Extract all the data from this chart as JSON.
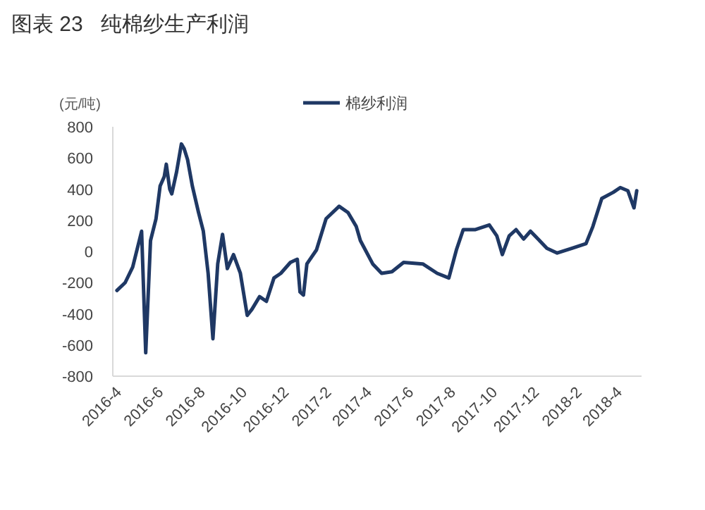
{
  "chart_data": {
    "type": "line",
    "title": "图表 23   纯棉纱生产利润",
    "ylabel": "(元/吨)",
    "legend": "top",
    "grid": false,
    "x": [
      "2016-03-24",
      "2016-04-05",
      "2016-04-16",
      "2016-04-29",
      "2016-05-05",
      "2016-05-12",
      "2016-05-20",
      "2016-05-26",
      "2016-06-01",
      "2016-06-04",
      "2016-06-09",
      "2016-06-12",
      "2016-06-19",
      "2016-06-26",
      "2016-06-30",
      "2016-07-05",
      "2016-07-12",
      "2016-07-21",
      "2016-07-28",
      "2016-08-04",
      "2016-08-11",
      "2016-08-18",
      "2016-08-25",
      "2016-09-01",
      "2016-09-10",
      "2016-09-20",
      "2016-09-30",
      "2016-10-07",
      "2016-10-18",
      "2016-10-28",
      "2016-11-08",
      "2016-11-18",
      "2016-12-02",
      "2016-12-12",
      "2016-12-16",
      "2016-12-21",
      "2016-12-26",
      "2017-01-09",
      "2017-01-23",
      "2017-02-11",
      "2017-02-24",
      "2017-03-08",
      "2017-03-14",
      "2017-04-01",
      "2017-04-14",
      "2017-04-29",
      "2017-05-16",
      "2017-06-13",
      "2017-07-04",
      "2017-07-21",
      "2017-08-01",
      "2017-08-11",
      "2017-08-28",
      "2017-09-18",
      "2017-09-29",
      "2017-10-07",
      "2017-10-17",
      "2017-10-27",
      "2017-11-07",
      "2017-11-17",
      "2017-11-28",
      "2017-12-11",
      "2017-12-26",
      "2018-01-16",
      "2018-02-06",
      "2018-02-16",
      "2018-03-01",
      "2018-03-18",
      "2018-03-28",
      "2018-04-08",
      "2018-04-17",
      "2018-04-21"
    ],
    "series": [
      {
        "name": "棉纱利润",
        "color": "#1f3864",
        "values": [
          -250,
          -200,
          -100,
          130,
          -650,
          70,
          210,
          420,
          480,
          560,
          400,
          370,
          510,
          690,
          660,
          590,
          420,
          250,
          130,
          -140,
          -560,
          -80,
          110,
          -110,
          -20,
          -140,
          -410,
          -370,
          -290,
          -320,
          -170,
          -140,
          -70,
          -50,
          -260,
          -280,
          -80,
          10,
          210,
          290,
          250,
          160,
          70,
          -80,
          -140,
          -130,
          -70,
          -80,
          -140,
          -170,
          10,
          140,
          140,
          170,
          100,
          -20,
          100,
          140,
          80,
          130,
          80,
          20,
          -10,
          20,
          50,
          160,
          340,
          380,
          410,
          390,
          280,
          390
        ]
      }
    ],
    "xlim": [
      "2016-03-18",
      "2018-04-28"
    ],
    "xticks": [
      {
        "value": "2016-04",
        "label": "2016-4"
      },
      {
        "value": "2016-06",
        "label": "2016-6"
      },
      {
        "value": "2016-08",
        "label": "2016-8"
      },
      {
        "value": "2016-10",
        "label": "2016-10"
      },
      {
        "value": "2016-12",
        "label": "2016-12"
      },
      {
        "value": "2017-02",
        "label": "2017-2"
      },
      {
        "value": "2017-04",
        "label": "2017-4"
      },
      {
        "value": "2017-06",
        "label": "2017-6"
      },
      {
        "value": "2017-08",
        "label": "2017-8"
      },
      {
        "value": "2017-10",
        "label": "2017-10"
      },
      {
        "value": "2017-12",
        "label": "2017-12"
      },
      {
        "value": "2018-02",
        "label": "2018-2"
      },
      {
        "value": "2018-04",
        "label": "2018-4"
      }
    ],
    "ylim": [
      -800,
      800
    ],
    "yticks": [
      -800,
      -600,
      -400,
      -200,
      0,
      200,
      400,
      600,
      800
    ]
  }
}
